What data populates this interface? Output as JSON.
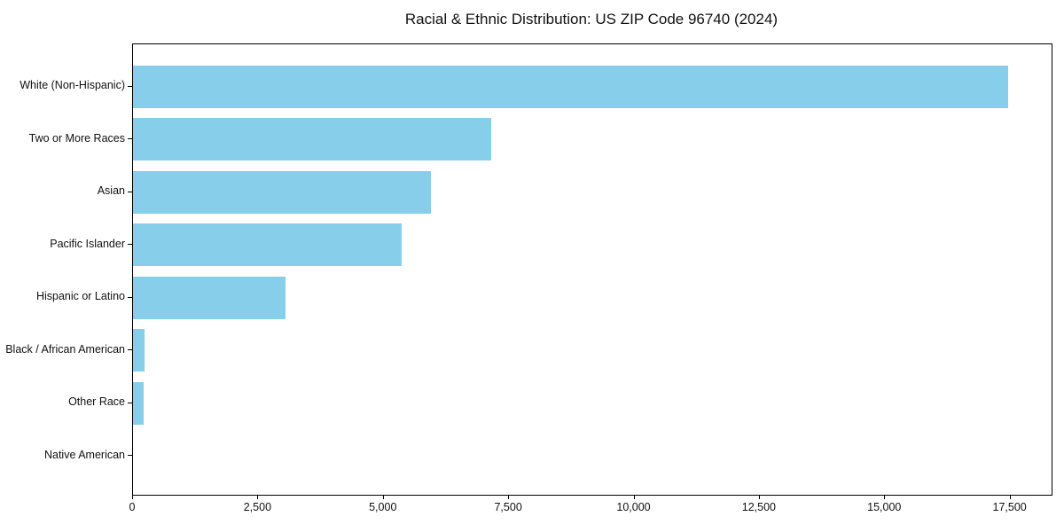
{
  "title": "Racial & Ethnic Distribution: US ZIP Code 96740 (2024)",
  "colors": {
    "bar": "#87CEEB",
    "axis": "#000000",
    "background": "#FFFFFF",
    "text": "#111111"
  },
  "chart_data": {
    "type": "bar",
    "orientation": "horizontal",
    "title": "Racial & Ethnic Distribution: US ZIP Code 96740 (2024)",
    "xlabel": "",
    "ylabel": "",
    "categories": [
      "White (Non-Hispanic)",
      "Two or More Races",
      "Asian",
      "Pacific Islander",
      "Hispanic or Latino",
      "Black / African American",
      "Other Race",
      "Native American"
    ],
    "values": [
      17450,
      7150,
      5940,
      5350,
      3040,
      230,
      210,
      0
    ],
    "bar_color": "#87CEEB",
    "xlim": [
      0,
      18320
    ],
    "x_ticks": [
      0,
      2500,
      5000,
      7500,
      10000,
      12500,
      15000,
      17500
    ],
    "x_tick_labels": [
      "0",
      "2,500",
      "5,000",
      "7,500",
      "10,000",
      "12,500",
      "15,000",
      "17,500"
    ],
    "grid": false,
    "legend": null
  }
}
